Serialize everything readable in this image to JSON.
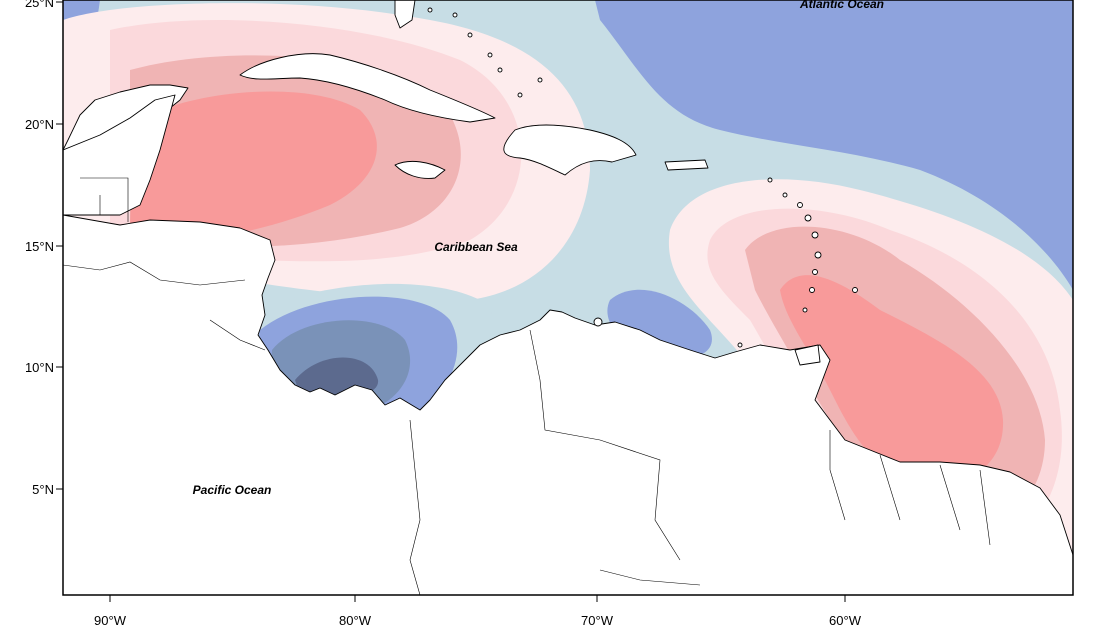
{
  "map": {
    "ocean_labels": {
      "atlantic": "Atlantic Ocean",
      "caribbean": "Caribbean Sea",
      "pacific": "Pacific Ocean"
    },
    "lat_ticks": [
      "25°N",
      "20°N",
      "15°N",
      "10°N",
      "5°N"
    ],
    "lon_ticks": [
      "90°W",
      "80°W",
      "70°W",
      "60°W"
    ],
    "colors": {
      "warm_strong": "#f89a9a",
      "warm_mid": "#f0b4b4",
      "warm_light": "#fbd9dc",
      "warm_pale": "#fdeced",
      "neutral": "#c7dde5",
      "cool_light": "#8ea3dd",
      "cool_mid": "#7a92b8",
      "cool_strong": "#5c6a8e"
    }
  }
}
